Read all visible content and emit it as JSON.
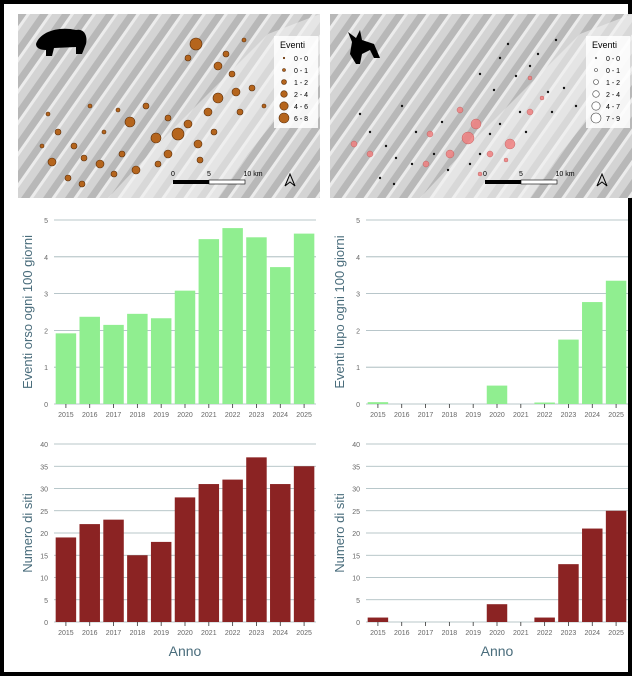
{
  "colors": {
    "events_bar": "#90ee90",
    "sites_bar": "#8b2323",
    "bear_marker": "#b5651d",
    "wolf_marker": "#f08080",
    "grid": "#a0b4b8",
    "axis_text": "#666666",
    "label_text": "#4a6d7c"
  },
  "maps": {
    "bear": {
      "animal_icon": "bear-silhouette-icon",
      "legend_title": "Eventi",
      "legend_items": [
        "0 - 0",
        "0 - 1",
        "1 - 2",
        "2 - 4",
        "4 - 6",
        "6 - 8"
      ],
      "scale_labels": [
        "0",
        "5",
        "10 km"
      ],
      "north_icon": "north-arrow-icon"
    },
    "wolf": {
      "animal_icon": "wolf-silhouette-icon",
      "legend_title": "Eventi",
      "legend_items": [
        "0 - 0",
        "0 - 1",
        "1 - 2",
        "2 - 4",
        "4 - 7",
        "7 - 9"
      ],
      "scale_labels": [
        "0",
        "5",
        "10 km"
      ],
      "north_icon": "north-arrow-icon"
    }
  },
  "x_axis_label": "Anno",
  "chart_data": [
    {
      "id": "bear-events",
      "type": "bar",
      "ylabel": "Eventi orso ogni 100 giorni",
      "xlabel": "",
      "categories": [
        "2015",
        "2016",
        "2017",
        "2018",
        "2019",
        "2020",
        "2021",
        "2022",
        "2023",
        "2024",
        "2025"
      ],
      "values": [
        1.92,
        2.37,
        2.15,
        2.45,
        2.33,
        3.08,
        4.48,
        4.78,
        4.53,
        3.72,
        4.63
      ],
      "ylim": [
        0,
        5
      ],
      "yticks": [
        0,
        1,
        2,
        3,
        4,
        5
      ],
      "grid": true
    },
    {
      "id": "wolf-events",
      "type": "bar",
      "ylabel": "Eventi lupo ogni 100 giorni",
      "xlabel": "",
      "categories": [
        "2015",
        "2016",
        "2017",
        "2018",
        "2019",
        "2020",
        "2021",
        "2022",
        "2023",
        "2024",
        "2025"
      ],
      "values": [
        0.05,
        0,
        0,
        0,
        0,
        0.5,
        0,
        0.04,
        1.75,
        2.77,
        3.35
      ],
      "ylim": [
        0,
        5
      ],
      "yticks": [
        0,
        1,
        2,
        3,
        4,
        5
      ],
      "grid": true
    },
    {
      "id": "bear-sites",
      "type": "bar",
      "ylabel": "Numero di siti",
      "xlabel": "Anno",
      "categories": [
        "2015",
        "2016",
        "2017",
        "2018",
        "2019",
        "2020",
        "2021",
        "2022",
        "2023",
        "2024",
        "2025"
      ],
      "values": [
        19,
        22,
        23,
        15,
        18,
        28,
        31,
        32,
        37,
        31,
        35
      ],
      "ylim": [
        0,
        40
      ],
      "yticks": [
        0,
        5,
        10,
        15,
        20,
        25,
        30,
        35,
        40
      ],
      "grid": true
    },
    {
      "id": "wolf-sites",
      "type": "bar",
      "ylabel": "Numero di siti",
      "xlabel": "Anno",
      "categories": [
        "2015",
        "2016",
        "2017",
        "2018",
        "2019",
        "2020",
        "2021",
        "2022",
        "2023",
        "2024",
        "2025"
      ],
      "values": [
        1,
        0,
        0,
        0,
        0,
        4,
        0,
        1,
        13,
        21,
        25
      ],
      "ylim": [
        0,
        40
      ],
      "yticks": [
        0,
        5,
        10,
        15,
        20,
        25,
        30,
        35,
        40
      ],
      "grid": true
    }
  ]
}
